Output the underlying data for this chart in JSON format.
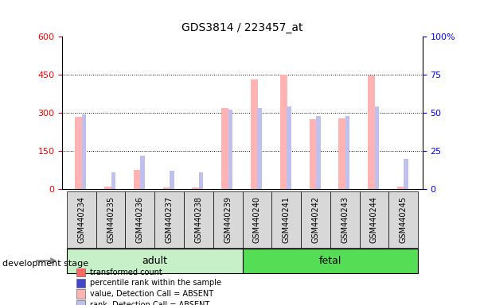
{
  "title": "GDS3814 / 223457_at",
  "samples": [
    "GSM440234",
    "GSM440235",
    "GSM440236",
    "GSM440237",
    "GSM440238",
    "GSM440239",
    "GSM440240",
    "GSM440241",
    "GSM440242",
    "GSM440243",
    "GSM440244",
    "GSM440245"
  ],
  "transformed_count": [
    285,
    10,
    75,
    8,
    8,
    320,
    430,
    450,
    275,
    278,
    448,
    10
  ],
  "percentile_rank_pct": [
    49,
    11,
    22,
    12,
    11,
    52,
    53,
    54,
    48,
    48,
    54,
    20
  ],
  "is_absent": [
    true,
    true,
    true,
    true,
    true,
    true,
    true,
    true,
    true,
    true,
    true,
    true
  ],
  "groups": [
    {
      "label": "adult",
      "samples": [
        0,
        1,
        2,
        3,
        4,
        5
      ],
      "color_light": "#c8f0c8",
      "color_dark": "#90ee90"
    },
    {
      "label": "fetal",
      "samples": [
        6,
        7,
        8,
        9,
        10,
        11
      ],
      "color_light": "#55dd55",
      "color_dark": "#22bb22"
    }
  ],
  "group_label": "development stage",
  "ylim_left": [
    0,
    600
  ],
  "ylim_right": [
    0,
    100
  ],
  "yticks_left": [
    0,
    150,
    300,
    450,
    600
  ],
  "yticks_right": [
    0,
    25,
    50,
    75,
    100
  ],
  "bar_color_absent": "#ffb3b3",
  "rank_color_absent": "#c0c0ee",
  "background_color": "#ffffff",
  "legend_items": [
    {
      "label": "transformed count",
      "color": "#ff6666"
    },
    {
      "label": "percentile rank within the sample",
      "color": "#4444cc"
    },
    {
      "label": "value, Detection Call = ABSENT",
      "color": "#ffb3b3"
    },
    {
      "label": "rank, Detection Call = ABSENT",
      "color": "#c0c0ee"
    }
  ]
}
